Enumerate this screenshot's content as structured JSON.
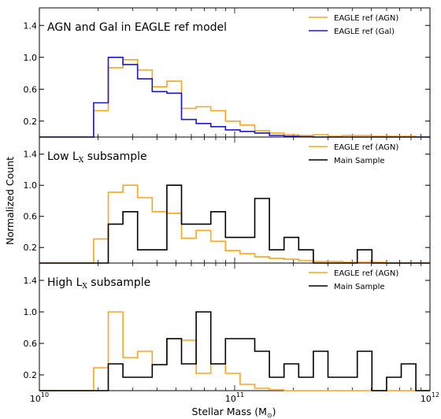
{
  "figure": {
    "ylabel": "Normalized Count",
    "xlabel_main": "Stellar Mass (M",
    "xlabel_sub": "⊙",
    "xlabel_close": ")",
    "x_ticks": [
      {
        "value": 10,
        "base": "10",
        "exp": "10"
      },
      {
        "value": 11,
        "base": "10",
        "exp": "11"
      },
      {
        "value": 12,
        "base": "10",
        "exp": "12"
      }
    ]
  },
  "chart_data": [
    {
      "type": "line",
      "step": true,
      "title_main": "AGN and Gal in EAGLE ref model",
      "title_sub": "",
      "title_after": "",
      "xscale": "log",
      "xlim": [
        10,
        12
      ],
      "ylim": [
        0,
        1.62
      ],
      "y_ticks": [
        0.2,
        0.6,
        1.0,
        1.4
      ],
      "grid": false,
      "legend_position": "top-right",
      "bin_edges": [
        10.0,
        10.278,
        10.353,
        10.428,
        10.503,
        10.578,
        10.653,
        10.728,
        10.803,
        10.878,
        10.953,
        11.028,
        11.103,
        11.178,
        11.253,
        11.328,
        11.403,
        11.478,
        11.553,
        11.628,
        11.703,
        11.778,
        11.853,
        11.928,
        12.0
      ],
      "series": [
        {
          "name": "EAGLE ref (AGN)",
          "color": "#f5a623",
          "values": [
            0,
            0.33,
            0.87,
            0.97,
            0.84,
            0.63,
            0.7,
            0.36,
            0.38,
            0.33,
            0.2,
            0.15,
            0.08,
            0.05,
            0.03,
            0.02,
            0.03,
            0.01,
            0.02,
            0.02,
            0.01,
            0.01,
            0.01,
            0
          ]
        },
        {
          "name": "EAGLE ref (Gal)",
          "color": "#1919c8",
          "values": [
            0,
            0.43,
            1.0,
            0.91,
            0.73,
            0.57,
            0.55,
            0.22,
            0.17,
            0.13,
            0.09,
            0.07,
            0.05,
            0.02,
            0.01,
            0.005,
            0,
            0,
            0,
            0,
            0,
            0,
            0,
            0
          ]
        }
      ]
    },
    {
      "type": "line",
      "step": true,
      "title_main": "Low L",
      "title_sub": "X",
      "title_after": " subsample",
      "xscale": "log",
      "xlim": [
        10,
        12
      ],
      "ylim": [
        0,
        1.62
      ],
      "y_ticks": [
        0.2,
        0.6,
        1.0,
        1.4
      ],
      "grid": false,
      "legend_position": "top-right",
      "bin_edges": [
        10.0,
        10.278,
        10.353,
        10.428,
        10.503,
        10.578,
        10.653,
        10.728,
        10.803,
        10.878,
        10.953,
        11.028,
        11.103,
        11.178,
        11.253,
        11.328,
        11.403,
        11.478,
        11.553,
        11.628,
        11.703,
        11.778,
        11.853,
        11.928,
        12.0
      ],
      "series": [
        {
          "name": "EAGLE ref (AGN)",
          "color": "#f5a623",
          "values": [
            0,
            0.31,
            0.91,
            1.0,
            0.84,
            0.66,
            0.64,
            0.32,
            0.42,
            0.28,
            0.16,
            0.12,
            0.08,
            0.06,
            0.05,
            0.03,
            0.02,
            0.02,
            0.01,
            0.01,
            0.01,
            0,
            0,
            0
          ]
        },
        {
          "name": "Main Sample",
          "color": "#000000",
          "values": [
            0,
            0,
            0.5,
            0.66,
            0.17,
            0.17,
            1.0,
            0.5,
            0.5,
            0.66,
            0.33,
            0.33,
            0.83,
            0.17,
            0.33,
            0.17,
            0,
            0,
            0,
            0.17,
            0,
            0,
            0,
            0
          ]
        }
      ]
    },
    {
      "type": "line",
      "step": true,
      "title_main": "High L",
      "title_sub": "X",
      "title_after": " subsample",
      "xscale": "log",
      "xlim": [
        10,
        12
      ],
      "ylim": [
        0,
        1.62
      ],
      "y_ticks": [
        0.2,
        0.6,
        1.0,
        1.4
      ],
      "grid": false,
      "legend_position": "top-right",
      "bin_edges": [
        10.0,
        10.278,
        10.353,
        10.428,
        10.503,
        10.578,
        10.653,
        10.728,
        10.803,
        10.878,
        10.953,
        11.028,
        11.103,
        11.178,
        11.253,
        11.328,
        11.403,
        11.478,
        11.553,
        11.628,
        11.703,
        11.778,
        11.853,
        11.928,
        12.0
      ],
      "series": [
        {
          "name": "EAGLE ref (AGN)",
          "color": "#f5a623",
          "values": [
            0,
            0.29,
            1.0,
            0.42,
            0.5,
            0.33,
            0.66,
            0.64,
            0.22,
            0.34,
            0.22,
            0.08,
            0.03,
            0.01,
            0,
            0,
            0,
            0,
            0,
            0,
            0,
            0,
            0,
            0
          ]
        },
        {
          "name": "Main Sample",
          "color": "#000000",
          "values": [
            0,
            0,
            0.34,
            0.17,
            0.17,
            0.33,
            0.66,
            0.34,
            1.0,
            0.34,
            0.66,
            0.66,
            0.5,
            0.17,
            0.34,
            0.17,
            0.5,
            0.17,
            0.17,
            0.5,
            0,
            0.17,
            0.34,
            0
          ]
        }
      ]
    }
  ]
}
